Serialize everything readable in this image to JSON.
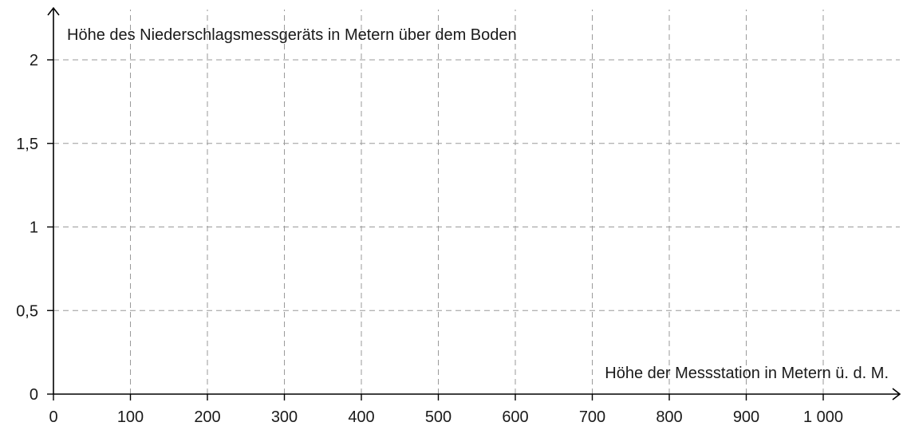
{
  "chart_data": {
    "type": "scatter",
    "title": "",
    "xlabel": "Höhe der Messstation in Metern ü. d. M.",
    "ylabel": "Höhe des Niederschlagsmessgeräts in Metern über dem Boden",
    "xlim": [
      0,
      1100
    ],
    "ylim": [
      0,
      2.25
    ],
    "x_ticks": [
      0,
      100,
      200,
      300,
      400,
      500,
      600,
      700,
      800,
      900,
      1000
    ],
    "x_tick_labels": [
      "0",
      "100",
      "200",
      "300",
      "400",
      "500",
      "600",
      "700",
      "800",
      "900",
      "1 000"
    ],
    "y_ticks": [
      0,
      0.5,
      1,
      1.5,
      2
    ],
    "y_tick_labels": [
      "0",
      "0,5",
      "1",
      "1,5",
      "2"
    ],
    "grid": true,
    "grid_style": "dashed",
    "series": []
  }
}
